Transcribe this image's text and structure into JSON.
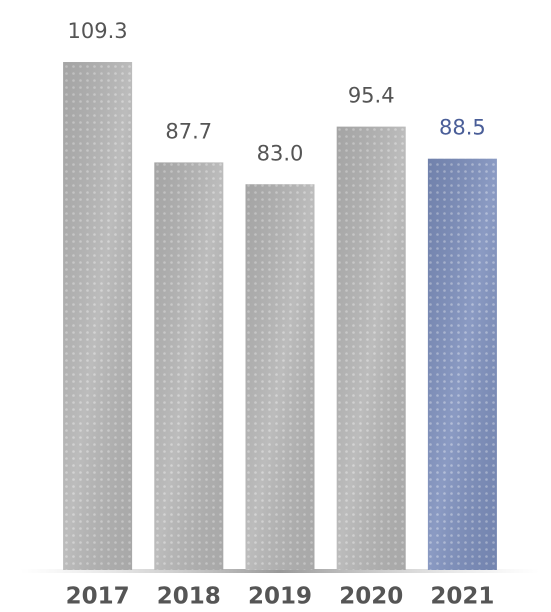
{
  "chart_data": {
    "type": "bar",
    "categories": [
      "2017",
      "2018",
      "2019",
      "2020",
      "2021"
    ],
    "values": [
      109.3,
      87.7,
      83.0,
      95.4,
      88.5
    ],
    "value_labels": [
      "109.3",
      "87.7",
      "83.0",
      "95.4",
      "88.5"
    ],
    "colors": [
      "#b3b3b3",
      "#b3b3b3",
      "#b3b3b3",
      "#b3b3b3",
      "#7b8dbb"
    ],
    "label_colors": [
      "#555555",
      "#555555",
      "#555555",
      "#555555",
      "#4a5e98"
    ],
    "ylim": [
      0,
      120
    ]
  }
}
